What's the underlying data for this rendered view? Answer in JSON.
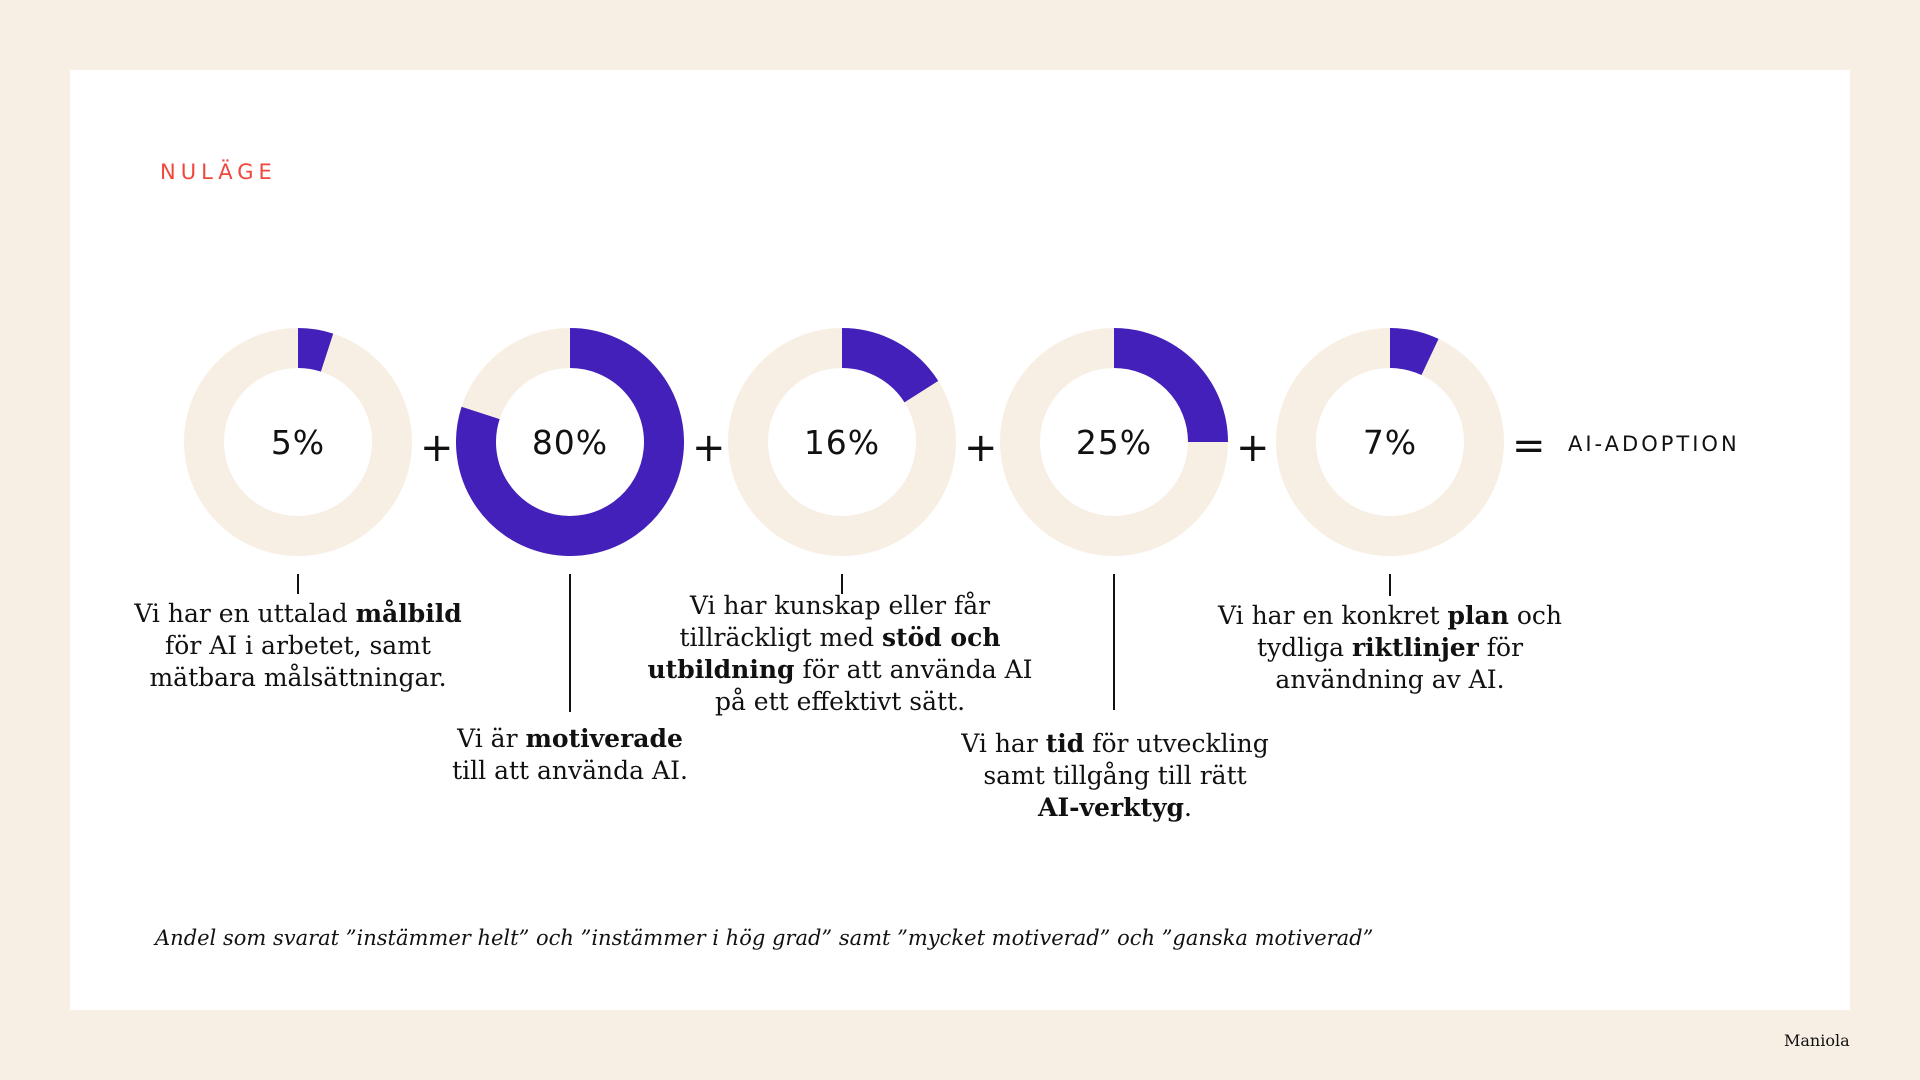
{
  "section_title": "NULÄGE",
  "result_label": "AI-ADOPTION",
  "operators": {
    "plus": "+",
    "equals": "="
  },
  "footnote": "Andel som svarat ”instämmer helt” och ”instämmer i hög grad” samt ”mycket motiverad” och ”ganska motiverad”",
  "brand": "Maniola",
  "colors": {
    "fill": "#4420bb",
    "track": "#f8efe4",
    "accent": "#f0463c",
    "page": "#f8efe4",
    "card": "#ffffff"
  },
  "chart_data": {
    "type": "donut",
    "series": [
      {
        "label": "5%",
        "value": 5,
        "desc": {
          "pre": "Vi har en uttalad ",
          "bold": "målbild",
          "post": "\nför AI i arbetet, samt\nmätbara målsättningar."
        }
      },
      {
        "label": "80%",
        "value": 80,
        "desc": {
          "pre": "Vi är ",
          "bold": "motiverade",
          "post": "\ntill att använda AI."
        }
      },
      {
        "label": "16%",
        "value": 16,
        "desc": {
          "pre": "Vi  har kunskap eller får\ntillräckligt med ",
          "bold": "stöd och\nutbildning",
          "post": " för att använda AI\npå ett effektivt sätt."
        }
      },
      {
        "label": "25%",
        "value": 25,
        "desc": {
          "pre": "Vi har ",
          "bold": "tid",
          "post": " för utveckling\nsamt tillgång till rätt\n",
          "bold2": "AI-verktyg",
          "post2": "."
        }
      },
      {
        "label": "7%",
        "value": 7,
        "desc": {
          "pre": "Vi har en konkret ",
          "bold": "plan",
          "post": " och\ntydliga ",
          "bold2": "riktlinjer",
          "post2": " för\nanvändning av AI."
        }
      }
    ]
  }
}
